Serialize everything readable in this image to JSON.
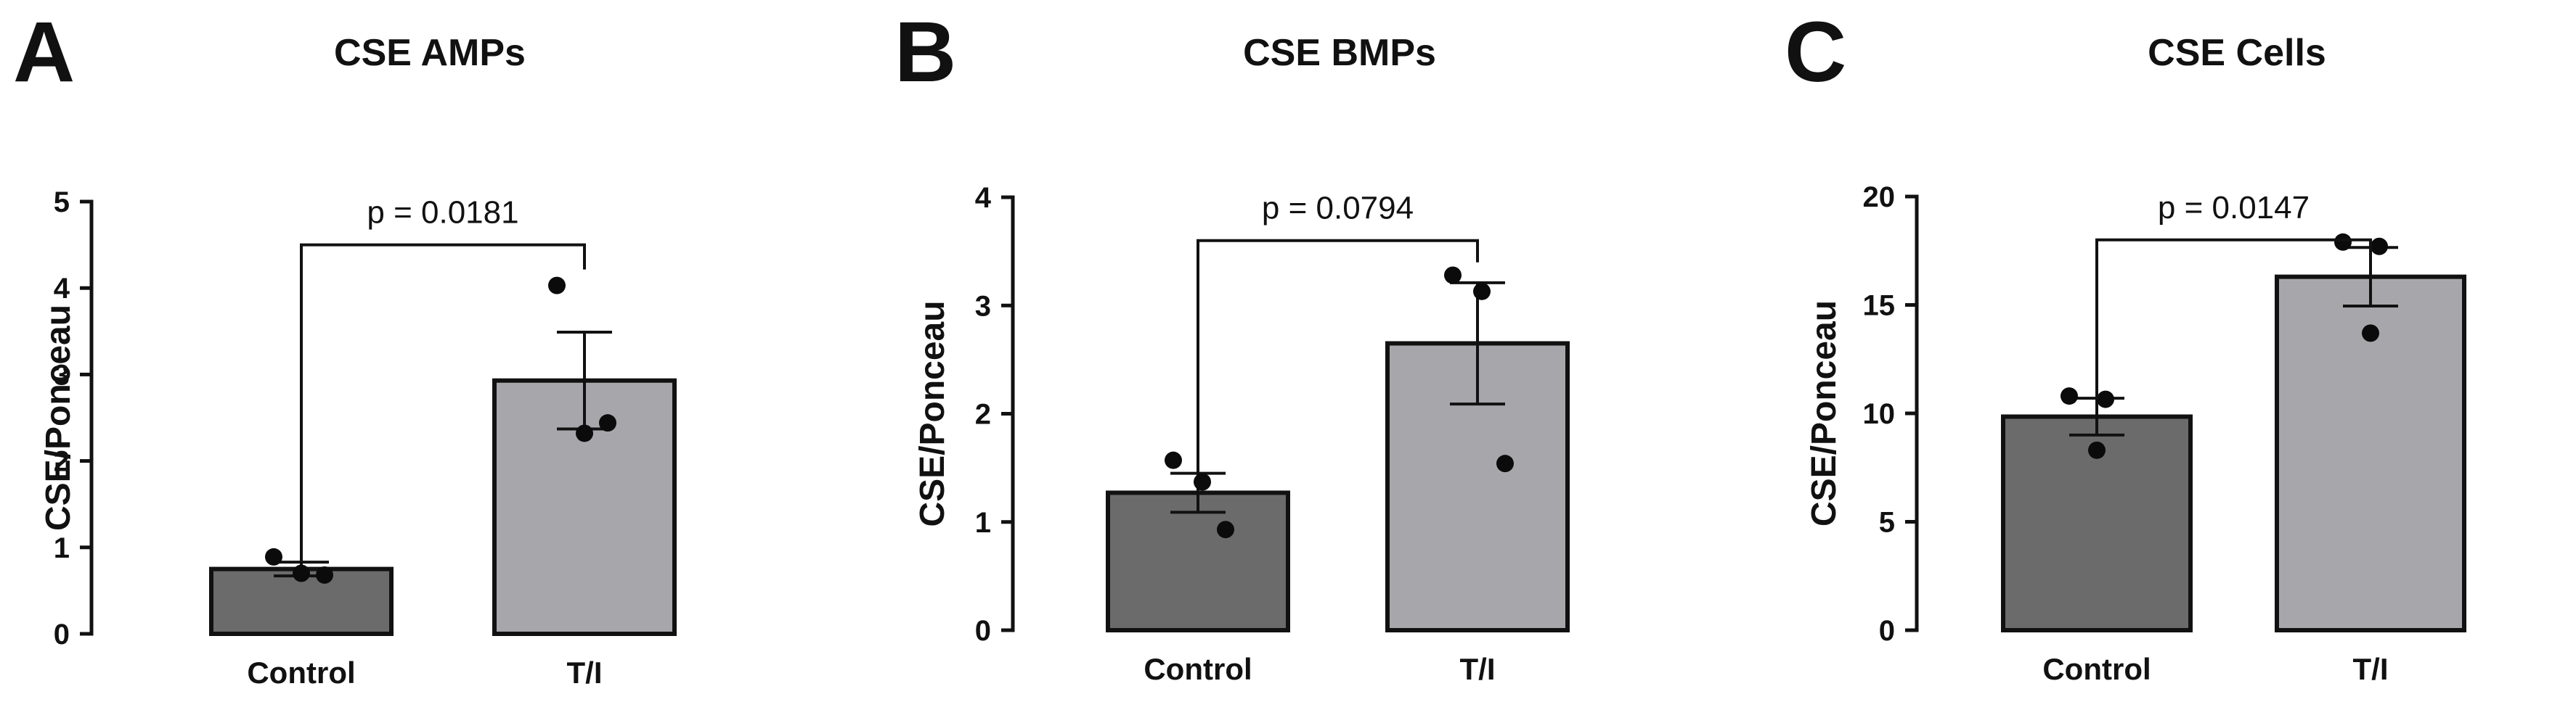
{
  "chart_data": [
    {
      "panel": "A",
      "type": "bar",
      "title": "CSE AMPs",
      "ylabel": "CSE/Ponceau",
      "categories": [
        "Control",
        "T/I"
      ],
      "values": [
        0.75,
        2.93
      ],
      "sem": [
        0.08,
        0.56
      ],
      "points": [
        [
          0.89,
          0.7,
          0.68
        ],
        [
          4.03,
          2.32,
          2.44
        ]
      ],
      "bar_colors": [
        "#6b6b6b",
        "#a7a7ab"
      ],
      "ylim": [
        0,
        5
      ],
      "yticks": [
        0,
        1,
        2,
        3,
        4,
        5
      ],
      "significance": {
        "label": "p = 0.0181",
        "y": 4.5
      }
    },
    {
      "panel": "B",
      "type": "bar",
      "title": "CSE BMPs",
      "ylabel": "CSE/Ponceau",
      "categories": [
        "Control",
        "T/I"
      ],
      "values": [
        1.27,
        2.65
      ],
      "sem": [
        0.18,
        0.56
      ],
      "points": [
        [
          1.57,
          1.37,
          0.93
        ],
        [
          3.28,
          3.13,
          1.54
        ]
      ],
      "bar_colors": [
        "#6b6b6b",
        "#a7a7ab"
      ],
      "ylim": [
        0,
        4
      ],
      "yticks": [
        0,
        1,
        2,
        3,
        4
      ],
      "significance": {
        "label": "p = 0.0794",
        "y": 3.6
      }
    },
    {
      "panel": "C",
      "type": "bar",
      "title": "CSE Cells",
      "ylabel": "CSE/Ponceau",
      "categories": [
        "Control",
        "T/I"
      ],
      "values": [
        9.85,
        16.3
      ],
      "sem": [
        0.85,
        1.35
      ],
      "points": [
        [
          10.8,
          10.65,
          8.3
        ],
        [
          17.9,
          17.7,
          13.7
        ]
      ],
      "bar_colors": [
        "#6b6b6b",
        "#a7a7ab"
      ],
      "ylim": [
        0,
        20
      ],
      "yticks": [
        0,
        5,
        10,
        15,
        20
      ],
      "significance": {
        "label": "p = 0.0147",
        "y": 18.0
      }
    }
  ]
}
